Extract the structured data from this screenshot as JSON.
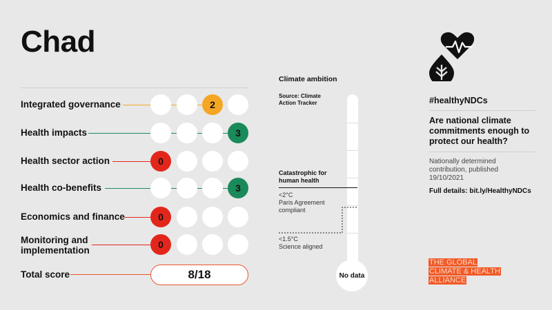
{
  "country": "Chad",
  "rows": [
    {
      "label": "Integrated governance",
      "score": "2",
      "filled_index": 2,
      "color": "#f5a623"
    },
    {
      "label": "Health impacts",
      "score": "3",
      "filled_index": 3,
      "color": "#1a8a5a"
    },
    {
      "label": "Health sector action",
      "score": "0",
      "filled_index": 0,
      "color": "#e3261b"
    },
    {
      "label": "Health co-benefits",
      "score": "3",
      "filled_index": 3,
      "color": "#1a8a5a"
    },
    {
      "label": "Economics and finance",
      "score": "0",
      "filled_index": 0,
      "color": "#e3261b"
    },
    {
      "label": "Monitoring and implementation",
      "score": "0",
      "filled_index": 0,
      "color": "#e3261b"
    }
  ],
  "total": {
    "label": "Total score",
    "value": "8/18",
    "accent": "#e8552e"
  },
  "climate": {
    "title": "Climate ambition",
    "source": "Source: Climate Action Tracker",
    "catastrophic": "Catastrophic for human health",
    "paris_temp": "<2°C",
    "paris_label": "Paris Agreement compliant",
    "science_temp": "<1.5°C",
    "science_label": "Science aligned",
    "rating": "No data"
  },
  "right": {
    "logo_icon": "heart-leaf-icon",
    "hashtag": "#healthyNDCs",
    "question": "Are national climate commitments enough to protect our health?",
    "ndc_info": "Nationally determined contribution, published 19/10/2021",
    "details": "Full details: bit.ly/HealthyNDCs"
  },
  "alliance_logo": {
    "lines": [
      "THE GLOBAL",
      "CLIMATE & HEALTH",
      "ALLIANCE"
    ],
    "bg": "#f05a28",
    "text": "#ffd6c2"
  }
}
